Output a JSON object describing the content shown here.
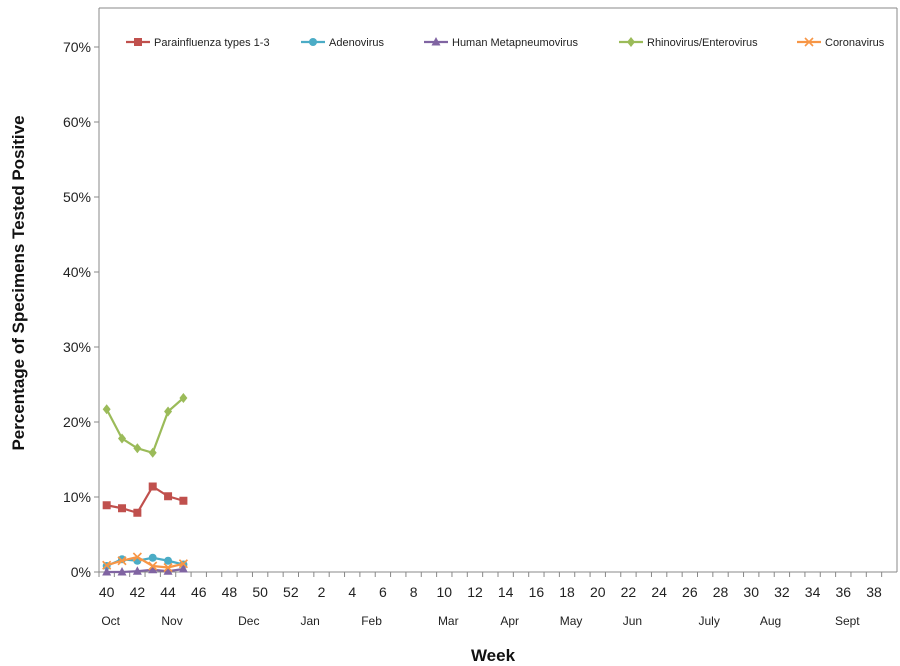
{
  "chart_data": {
    "type": "line",
    "title": "",
    "xlabel": "Week",
    "ylabel": "Percentage of Specimens Tested Positive",
    "ylim": [
      0,
      70
    ],
    "yticks": [
      "0%",
      "10%",
      "20%",
      "30%",
      "40%",
      "50%",
      "60%",
      "70%"
    ],
    "x_categories": [
      "40",
      "41",
      "42",
      "43",
      "44",
      "45",
      "46",
      "47",
      "48",
      "49",
      "50",
      "51",
      "52",
      "1",
      "2",
      "3",
      "4",
      "5",
      "6",
      "7",
      "8",
      "9",
      "10",
      "11",
      "12",
      "13",
      "14",
      "15",
      "16",
      "17",
      "18",
      "19",
      "20",
      "21",
      "22",
      "23",
      "24",
      "25",
      "26",
      "27",
      "28",
      "29",
      "30",
      "31",
      "32",
      "33",
      "34",
      "35",
      "36",
      "37",
      "38",
      "39"
    ],
    "x_tick_labels": [
      "40",
      "42",
      "44",
      "46",
      "48",
      "50",
      "52",
      "2",
      "4",
      "6",
      "8",
      "10",
      "12",
      "14",
      "16",
      "18",
      "20",
      "22",
      "24",
      "26",
      "28",
      "30",
      "32",
      "34",
      "36",
      "38"
    ],
    "month_labels": [
      {
        "label": "Oct",
        "at_week": "40"
      },
      {
        "label": "Nov",
        "at_week": "44"
      },
      {
        "label": "Dec",
        "at_week": "49"
      },
      {
        "label": "Jan",
        "at_week": "1"
      },
      {
        "label": "Feb",
        "at_week": "5"
      },
      {
        "label": "Mar",
        "at_week": "10"
      },
      {
        "label": "Apr",
        "at_week": "14"
      },
      {
        "label": "May",
        "at_week": "18"
      },
      {
        "label": "Jun",
        "at_week": "22"
      },
      {
        "label": "July",
        "at_week": "27"
      },
      {
        "label": "Aug",
        "at_week": "31"
      },
      {
        "label": "Sept",
        "at_week": "36"
      }
    ],
    "legend_position": "top",
    "series": [
      {
        "name": "Parainfluenza types 1-3",
        "color": "#c0504d",
        "marker": "square",
        "x": [
          "40",
          "41",
          "42",
          "43",
          "44",
          "45"
        ],
        "values": [
          8.9,
          8.5,
          7.9,
          11.4,
          10.1,
          9.5
        ]
      },
      {
        "name": "Adenovirus",
        "color": "#4bacc6",
        "marker": "circle",
        "x": [
          "40",
          "41",
          "42",
          "43",
          "44",
          "45"
        ],
        "values": [
          0.8,
          1.7,
          1.5,
          1.9,
          1.5,
          1.0
        ]
      },
      {
        "name": "Human Metapneumovirus",
        "color": "#8064a2",
        "marker": "triangle",
        "x": [
          "40",
          "41",
          "42",
          "43",
          "44",
          "45"
        ],
        "values": [
          0.0,
          0.0,
          0.1,
          0.3,
          0.1,
          0.4
        ]
      },
      {
        "name": "Rhinovirus/Enterovirus",
        "color": "#9bbb59",
        "marker": "diamond",
        "x": [
          "40",
          "41",
          "42",
          "43",
          "44",
          "45"
        ],
        "values": [
          21.7,
          17.8,
          16.5,
          15.9,
          21.4,
          23.2
        ]
      },
      {
        "name": "Coronavirus",
        "color": "#f79646",
        "marker": "x",
        "x": [
          "40",
          "41",
          "42",
          "43",
          "44",
          "45"
        ],
        "values": [
          0.9,
          1.5,
          2.0,
          0.8,
          0.6,
          1.1
        ]
      }
    ]
  }
}
